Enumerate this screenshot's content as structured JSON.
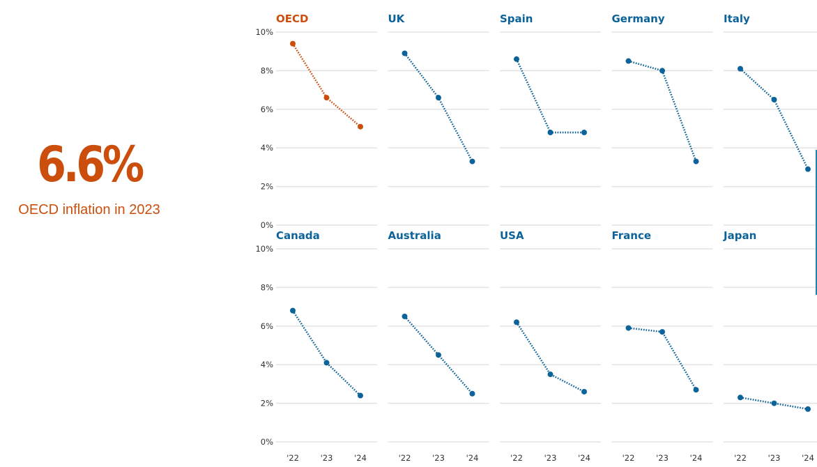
{
  "kpi": {
    "value": "6.6%",
    "caption": "OECD inflation in 2023"
  },
  "colors": {
    "highlight": "#cc4e0c",
    "series": "#0b639a",
    "grid": "#e3e3e3",
    "axis_text": "#333333"
  },
  "chart_data": {
    "type": "line",
    "layout": "small-multiples",
    "x": [
      "'22",
      "'23",
      "'24"
    ],
    "ylim": [
      0,
      10
    ],
    "yticks": [
      "0%",
      "2%",
      "4%",
      "6%",
      "8%",
      "10%"
    ],
    "grid": true,
    "series": [
      {
        "name": "OECD",
        "values": [
          9.4,
          6.6,
          5.1
        ],
        "highlight": true
      },
      {
        "name": "UK",
        "values": [
          8.9,
          6.6,
          3.3
        ]
      },
      {
        "name": "Spain",
        "values": [
          8.6,
          4.8,
          4.8
        ]
      },
      {
        "name": "Germany",
        "values": [
          8.5,
          8.0,
          3.3
        ]
      },
      {
        "name": "Italy",
        "values": [
          8.1,
          6.5,
          2.9
        ]
      },
      {
        "name": "Canada",
        "values": [
          6.8,
          4.1,
          2.4
        ]
      },
      {
        "name": "Australia",
        "values": [
          6.5,
          4.5,
          2.5
        ]
      },
      {
        "name": "USA",
        "values": [
          6.2,
          3.5,
          2.6
        ]
      },
      {
        "name": "France",
        "values": [
          5.9,
          5.7,
          2.7
        ]
      },
      {
        "name": "Japan",
        "values": [
          2.3,
          2.0,
          1.7
        ]
      }
    ]
  }
}
